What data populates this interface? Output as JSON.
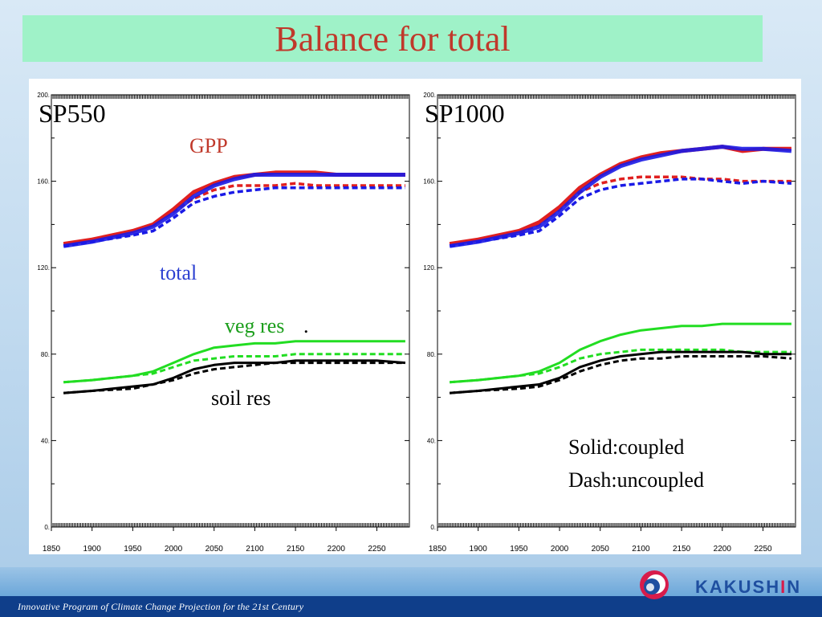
{
  "title": "Balance for total",
  "footer": {
    "program": "Innovative Program of Climate Change Projection for the 21st Century"
  },
  "logo": {
    "text_pre": "KAKUSH",
    "text_i": "I",
    "text_post": "N"
  },
  "legend_note": {
    "solid": "Solid:coupled",
    "dash": "Dash:uncoupled"
  },
  "colors": {
    "gpp_coupled": "#e02020",
    "total": "#1a1ae6",
    "veg": "#22dd22",
    "soil": "#000000"
  },
  "chart_data": [
    {
      "type": "line",
      "panel_label": "SP550",
      "annotations": {
        "gpp": "GPP",
        "total": "total",
        "veg": "veg res",
        "veg_dot": ".",
        "soil": "soil res"
      },
      "xlim": [
        1850,
        2290
      ],
      "ylim": [
        0,
        200
      ],
      "x_ticks": [
        1850,
        1900,
        1950,
        2000,
        2050,
        2100,
        2150,
        2200,
        2250
      ],
      "y_ticks": [
        0,
        40,
        80,
        120,
        160,
        200
      ],
      "y_tick_labels": [
        "0.",
        "40.",
        "80.",
        "120.",
        "160.",
        "200."
      ],
      "x": [
        1865,
        1900,
        1950,
        1975,
        2000,
        2025,
        2050,
        2075,
        2100,
        2125,
        2150,
        2175,
        2200,
        2250,
        2285
      ],
      "series": [
        {
          "key": "gpp_coupled",
          "style": "solid",
          "values": [
            131,
            133,
            137,
            140,
            147,
            155,
            159,
            162,
            163,
            164,
            164,
            164,
            163,
            163,
            163
          ]
        },
        {
          "key": "gpp_uncoupled",
          "style": "dash",
          "values": [
            131,
            133,
            137,
            140,
            146,
            152,
            156,
            158,
            158,
            158,
            159,
            158,
            158,
            158,
            158
          ]
        },
        {
          "key": "total_coupled",
          "style": "solid",
          "values": [
            130,
            132,
            136,
            139,
            145,
            153,
            158,
            161,
            163,
            163,
            163,
            163,
            163,
            163,
            163
          ]
        },
        {
          "key": "total_uncoupled",
          "style": "dash",
          "values": [
            130,
            132,
            135,
            137,
            143,
            150,
            153,
            155,
            156,
            157,
            157,
            157,
            157,
            157,
            157
          ]
        },
        {
          "key": "veg_coupled",
          "style": "solid",
          "values": [
            67,
            68,
            70,
            72,
            76,
            80,
            83,
            84,
            85,
            85,
            86,
            86,
            86,
            86,
            86
          ]
        },
        {
          "key": "veg_uncoupled",
          "style": "dash",
          "values": [
            67,
            68,
            70,
            71,
            74,
            77,
            78,
            79,
            79,
            79,
            80,
            80,
            80,
            80,
            80
          ]
        },
        {
          "key": "soil_coupled",
          "style": "solid",
          "values": [
            62,
            63,
            65,
            66,
            69,
            73,
            75,
            76,
            76,
            76,
            77,
            77,
            77,
            77,
            76
          ]
        },
        {
          "key": "soil_uncoupled",
          "style": "dash",
          "values": [
            62,
            63,
            64,
            66,
            68,
            71,
            73,
            74,
            75,
            76,
            76,
            76,
            76,
            76,
            76
          ]
        }
      ]
    },
    {
      "type": "line",
      "panel_label": "SP1000",
      "xlim": [
        1850,
        2290
      ],
      "ylim": [
        0,
        200
      ],
      "x_ticks": [
        1850,
        1900,
        1950,
        2000,
        2050,
        2100,
        2150,
        2200,
        2250
      ],
      "y_ticks": [
        0,
        40,
        80,
        120,
        160,
        200
      ],
      "y_tick_labels": [
        "0.",
        "40.",
        "80.",
        "120.",
        "160.",
        "200."
      ],
      "x": [
        1865,
        1900,
        1950,
        1975,
        2000,
        2025,
        2050,
        2075,
        2100,
        2125,
        2150,
        2175,
        2200,
        2225,
        2250,
        2285
      ],
      "series": [
        {
          "key": "gpp_coupled",
          "style": "solid",
          "values": [
            131,
            133,
            137,
            141,
            148,
            157,
            163,
            168,
            171,
            173,
            174,
            175,
            176,
            174,
            175,
            175
          ]
        },
        {
          "key": "gpp_uncoupled",
          "style": "dash",
          "values": [
            131,
            133,
            136,
            140,
            147,
            155,
            159,
            161,
            162,
            162,
            162,
            161,
            161,
            160,
            160,
            160
          ]
        },
        {
          "key": "total_coupled",
          "style": "solid",
          "values": [
            130,
            132,
            136,
            139,
            146,
            155,
            162,
            167,
            170,
            172,
            174,
            175,
            176,
            175,
            175,
            174
          ]
        },
        {
          "key": "total_uncoupled",
          "style": "dash",
          "values": [
            130,
            132,
            135,
            137,
            144,
            152,
            156,
            158,
            159,
            160,
            161,
            161,
            160,
            159,
            160,
            159
          ]
        },
        {
          "key": "veg_coupled",
          "style": "solid",
          "values": [
            67,
            68,
            70,
            72,
            76,
            82,
            86,
            89,
            91,
            92,
            93,
            93,
            94,
            94,
            94,
            94
          ]
        },
        {
          "key": "veg_uncoupled",
          "style": "dash",
          "values": [
            67,
            68,
            70,
            71,
            74,
            78,
            80,
            81,
            82,
            82,
            82,
            82,
            82,
            81,
            81,
            81
          ]
        },
        {
          "key": "soil_coupled",
          "style": "solid",
          "values": [
            62,
            63,
            65,
            66,
            69,
            74,
            77,
            79,
            80,
            81,
            81,
            81,
            81,
            81,
            80,
            80
          ]
        },
        {
          "key": "soil_uncoupled",
          "style": "dash",
          "values": [
            62,
            63,
            64,
            65,
            68,
            72,
            75,
            77,
            78,
            78,
            79,
            79,
            79,
            79,
            79,
            78
          ]
        }
      ]
    }
  ]
}
